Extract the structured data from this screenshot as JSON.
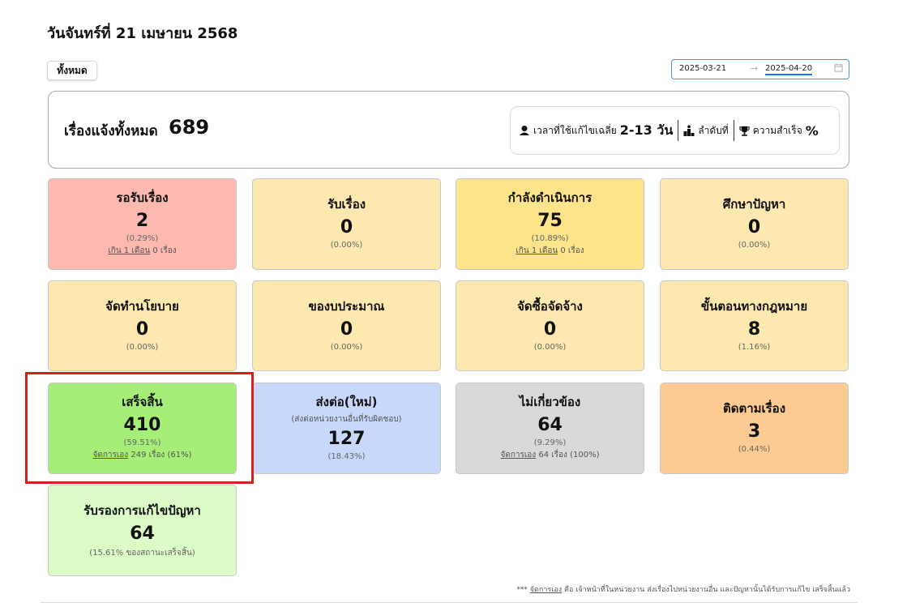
{
  "header": {
    "date_title": "วันจันทร์ที่ 21 เมษายน 2568"
  },
  "filter": {
    "all_label": "ทั้งหมด"
  },
  "date_range": {
    "from": "2025-03-21",
    "arrow": "→",
    "to": "2025-04-20"
  },
  "summary": {
    "label": "เรื่องแจ้งทั้งหมด",
    "total": "689",
    "stats": {
      "avg_time_label": "เวลาที่ใช้แก้ไขเฉลี่ย",
      "avg_time_value": "2-13 วัน",
      "rank_label": "ลำดับที่",
      "success_label": "ความสำเร็จ",
      "success_value": "%"
    }
  },
  "cards": [
    {
      "title": "รอรับเรื่อง",
      "count": "2",
      "pct": "(0.29%)",
      "sub_link": "เกิน 1 เดือน",
      "sub_text": " 0 เรื่อง",
      "color": "#fdb8b0"
    },
    {
      "title": "รับเรื่อง",
      "count": "0",
      "pct": "(0.00%)",
      "color": "#fde8b0"
    },
    {
      "title": "กำลังดำเนินการ",
      "count": "75",
      "pct": "(10.89%)",
      "sub_link": "เกิน 1 เดือน",
      "sub_text": " 0 เรื่อง",
      "color": "#fde38a"
    },
    {
      "title": "ศึกษาปัญหา",
      "count": "0",
      "pct": "(0.00%)",
      "color": "#fde8b0"
    },
    {
      "title": "จัดทำนโยบาย",
      "count": "0",
      "pct": "(0.00%)",
      "color": "#fde8b0"
    },
    {
      "title": "ของบประมาณ",
      "count": "0",
      "pct": "(0.00%)",
      "color": "#fde8b0"
    },
    {
      "title": "จัดซื้อจัดจ้าง",
      "count": "0",
      "pct": "(0.00%)",
      "color": "#fde8b0"
    },
    {
      "title": "ขั้นตอนทางกฎหมาย",
      "count": "8",
      "pct": "(1.16%)",
      "color": "#fde8b0"
    },
    {
      "title": "เสร็จสิ้น",
      "count": "410",
      "pct": "(59.51%)",
      "sub_link": "จัดการเอง",
      "sub_text": " 249 เรื่อง (61%)",
      "color": "#a6ee78"
    },
    {
      "title": "ส่งต่อ(ใหม่)",
      "subtitle": "(ส่งต่อหน่วยงานอื่นที่รับผิดชอบ)",
      "count": "127",
      "pct": "(18.43%)",
      "color": "#c8d8fa"
    },
    {
      "title": "ไม่เกี่ยวข้อง",
      "count": "64",
      "pct": "(9.29%)",
      "sub_link": "จัดการเอง",
      "sub_text": " 64 เรื่อง (100%)",
      "color": "#d9d9d9"
    },
    {
      "title": "ติดตามเรื่อง",
      "count": "3",
      "pct": "(0.44%)",
      "color": "#fdcb91"
    },
    {
      "title": "รับรองการแก้ไขปัญหา",
      "count": "64",
      "pct": "(15.61% ของสถานะเสร็จสิ้น)",
      "color": "#dbfcc6"
    }
  ],
  "footnote": {
    "prefix": "*** ",
    "link": "จัดการเอง",
    "text": " คือ เจ้าหน้าที่ในหน่วยงาน ส่งเรื่องไปหน่วยงานอื่น และปัญหานั้นได้รับการแก้ไข เสร็จสิ้นแล้ว"
  }
}
